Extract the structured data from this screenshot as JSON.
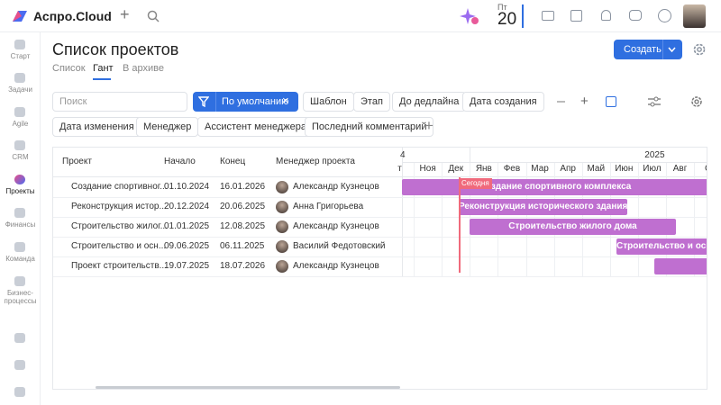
{
  "header": {
    "logo": "Аспро.Cloud",
    "weekday": "Пт",
    "day": "20"
  },
  "sidebar": [
    "Старт",
    "Задачи",
    "Agile",
    "CRM",
    "Проекты",
    "Финансы",
    "Команда",
    "Бизнес-процессы"
  ],
  "page": {
    "title": "Список проектов",
    "tabs": [
      "Список",
      "Гант",
      "В архиве"
    ],
    "create": "Создать"
  },
  "filters": {
    "search": "Поиск",
    "preset": "По умолчанию",
    "chips": [
      "Шаблон",
      "Этап",
      "До дедлайна",
      "Дата создания",
      "Дата изменения",
      "Менеджер",
      "Ассистент менеджера",
      "Последний комментарий"
    ]
  },
  "table": {
    "columns": [
      "Проект",
      "Начало",
      "Конец",
      "Менеджер проекта"
    ],
    "rows": [
      [
        "Создание спортивног...",
        "01.10.2024",
        "16.01.2026",
        "Александр Кузнецов"
      ],
      [
        "Реконструкция истор...",
        "20.12.2024",
        "20.06.2025",
        "Анна Григорьева"
      ],
      [
        "Строительство жилог...",
        "01.01.2025",
        "12.08.2025",
        "Александр Кузнецов"
      ],
      [
        "Строительство и осн...",
        "09.06.2025",
        "06.11.2025",
        "Василий Федотовский"
      ],
      [
        "Проект строительств...",
        "19.07.2025",
        "18.07.2026",
        "Александр Кузнецов"
      ]
    ]
  },
  "gantt": {
    "years": [
      "4",
      "2025"
    ],
    "months": [
      "т",
      "Ноя",
      "Дек",
      "Янв",
      "Фев",
      "Мар",
      "Апр",
      "Май",
      "Июн",
      "Июл",
      "Авг",
      "С"
    ],
    "today": "Сегодня",
    "bars": [
      "Создание спортивного комплекса",
      "Реконструкция исторического здания",
      "Строительство жилого дома",
      "Строительство и оснащ",
      null
    ]
  }
}
